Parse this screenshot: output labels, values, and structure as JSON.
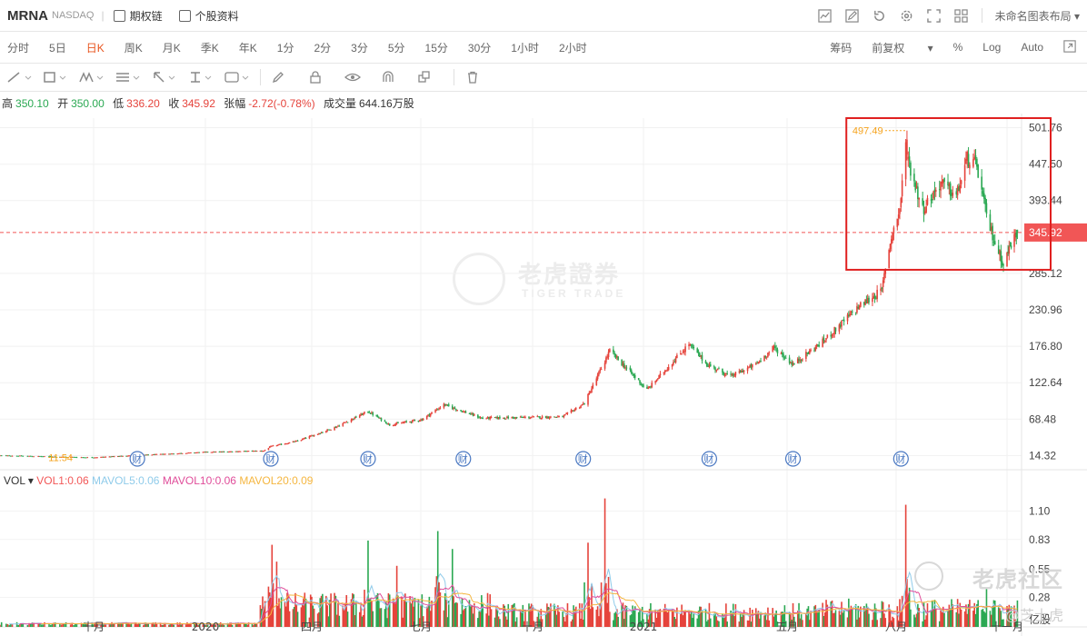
{
  "header": {
    "symbol": "MRNA",
    "exchange": "NASDAQ",
    "separator": "|",
    "options_chain": "期权链",
    "stock_info": "个股资料",
    "layout_name": "未命名图表布局"
  },
  "periods": [
    "分时",
    "5日",
    "日K",
    "周K",
    "月K",
    "季K",
    "年K",
    "1分",
    "2分",
    "3分",
    "5分",
    "15分",
    "30分",
    "1小时",
    "2小时"
  ],
  "active_period": "日K",
  "right_options": {
    "chips": "筹码",
    "adjust": "前复权",
    "percent": "%",
    "log": "Log",
    "auto": "Auto"
  },
  "ohlc": {
    "high_label": "高",
    "high": "350.10",
    "open_label": "开",
    "open": "350.00",
    "low_label": "低",
    "low": "336.20",
    "close_label": "收",
    "close": "345.92",
    "change_label": "张幅",
    "change": "-2.72(-0.78%)",
    "volume_label": "成交量",
    "volume": "644.16万股"
  },
  "watermark": {
    "cn": "老虎證券",
    "en": "TIGER TRADE"
  },
  "community_watermark": "老虎社区",
  "author_watermark": "@芝士虎",
  "colors": {
    "up": "#e5433b",
    "down": "#2aa852",
    "highlight_box": "#e02020",
    "last_price_tag": "#f15656",
    "max_label": "#f5a21b",
    "vol1": "#f25757",
    "mavol5": "#8fcbea",
    "mavol10": "#e04d9a",
    "mavol20": "#f5b640"
  },
  "chart_data": {
    "type": "candlestick",
    "x_labels": [
      "十月",
      "2020",
      "四月",
      "七月",
      "十月",
      "2021",
      "五月",
      "八月",
      "十一月"
    ],
    "price_axis_ticks": [
      501.76,
      447.5,
      393.44,
      345.92,
      285.12,
      230.96,
      176.8,
      122.64,
      68.48,
      14.32
    ],
    "ylim": [
      0,
      516
    ],
    "last_price": 345.92,
    "max_label": 497.49,
    "min_label": 11.54,
    "earnings_marker": "财",
    "earnings_dates": [
      "2019-11-06",
      "2020-02-26",
      "2020-05-18",
      "2020-08-05",
      "2020-11-12",
      "2021-02-25",
      "2021-05-06",
      "2021-08-05"
    ],
    "key_points": [
      {
        "date": "2019-08-01",
        "price": 14.5
      },
      {
        "date": "2019-09-30",
        "price": 11.54
      },
      {
        "date": "2019-12-31",
        "price": 19.5
      },
      {
        "date": "2020-02-20",
        "price": 21.5
      },
      {
        "date": "2020-02-26",
        "price": 28
      },
      {
        "date": "2020-03-20",
        "price": 36
      },
      {
        "date": "2020-04-20",
        "price": 56
      },
      {
        "date": "2020-05-18",
        "price": 80
      },
      {
        "date": "2020-06-05",
        "price": 60
      },
      {
        "date": "2020-07-02",
        "price": 68
      },
      {
        "date": "2020-07-20",
        "price": 90
      },
      {
        "date": "2020-08-20",
        "price": 70
      },
      {
        "date": "2020-10-26",
        "price": 72
      },
      {
        "date": "2020-11-13",
        "price": 92
      },
      {
        "date": "2020-11-30",
        "price": 155
      },
      {
        "date": "2020-12-04",
        "price": 170
      },
      {
        "date": "2021-01-04",
        "price": 112
      },
      {
        "date": "2021-02-08",
        "price": 180
      },
      {
        "date": "2021-02-23",
        "price": 150
      },
      {
        "date": "2021-03-15",
        "price": 132
      },
      {
        "date": "2021-04-05",
        "price": 150
      },
      {
        "date": "2021-04-20",
        "price": 175
      },
      {
        "date": "2021-05-06",
        "price": 150
      },
      {
        "date": "2021-06-01",
        "price": 185
      },
      {
        "date": "2021-06-30",
        "price": 235
      },
      {
        "date": "2021-07-20",
        "price": 260
      },
      {
        "date": "2021-07-23",
        "price": 295
      },
      {
        "date": "2021-07-28",
        "price": 340
      },
      {
        "date": "2021-08-04",
        "price": 380
      },
      {
        "date": "2021-08-09",
        "price": 475
      },
      {
        "date": "2021-08-13",
        "price": 440
      },
      {
        "date": "2021-08-23",
        "price": 380
      },
      {
        "date": "2021-09-07",
        "price": 420
      },
      {
        "date": "2021-09-20",
        "price": 400
      },
      {
        "date": "2021-09-29",
        "price": 455
      },
      {
        "date": "2021-10-07",
        "price": 445
      },
      {
        "date": "2021-10-15",
        "price": 370
      },
      {
        "date": "2021-10-22",
        "price": 330
      },
      {
        "date": "2021-10-29",
        "price": 300
      },
      {
        "date": "2021-11-05",
        "price": 330
      },
      {
        "date": "2021-11-11",
        "price": 346
      }
    ],
    "volume_axis_ticks": [
      "1.10",
      "0.83",
      "0.55",
      "0.28"
    ],
    "volume_unit": "亿股",
    "vol_label": "VOL",
    "vol_legend": [
      {
        "name": "VOL1",
        "value": "0.06"
      },
      {
        "name": "MAVOL5",
        "value": "0.06"
      },
      {
        "name": "MAVOL10",
        "value": "0.06"
      },
      {
        "name": "MAVOL20",
        "value": "0.09"
      }
    ],
    "volume_spikes": [
      {
        "date": "2020-02-27",
        "value": 0.78
      },
      {
        "date": "2020-03-02",
        "value": 0.62
      },
      {
        "date": "2020-05-18",
        "value": 0.82
      },
      {
        "date": "2020-06-11",
        "value": 0.58
      },
      {
        "date": "2020-07-15",
        "value": 0.91
      },
      {
        "date": "2020-07-27",
        "value": 0.74
      },
      {
        "date": "2020-11-16",
        "value": 0.8
      },
      {
        "date": "2020-11-30",
        "value": 1.22
      },
      {
        "date": "2021-08-09",
        "value": 1.16
      },
      {
        "date": "2021-10-15",
        "value": 0.36
      }
    ]
  }
}
